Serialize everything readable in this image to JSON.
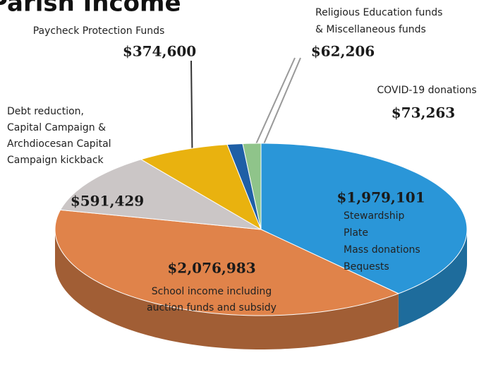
{
  "chart_data": {
    "type": "pie",
    "title": "Parish Income",
    "categories": [
      "Stewardship\nPlate\nMass donations\nBequests",
      "School income including\nauction funds and subsidy",
      "Debt reduction,\nCapital Campaign &\nArchdiocesan  Capital\nCampaign kickback",
      "Paycheck Protection Funds",
      "Religious Education funds\n& Miscellaneous funds",
      "COVID-19 donations"
    ],
    "values": [
      1979101,
      2076983,
      591429,
      374600,
      62206,
      73263
    ],
    "value_labels": [
      "$1,979,101",
      "$2,076,983",
      "$591,429",
      "$374,600",
      "$62,206",
      "$73,263"
    ],
    "colors": [
      "#2a96d8",
      "#e0834a",
      "#cbc6c6",
      "#e9b20f",
      "#1f5fa6",
      "#8fc48a"
    ]
  }
}
